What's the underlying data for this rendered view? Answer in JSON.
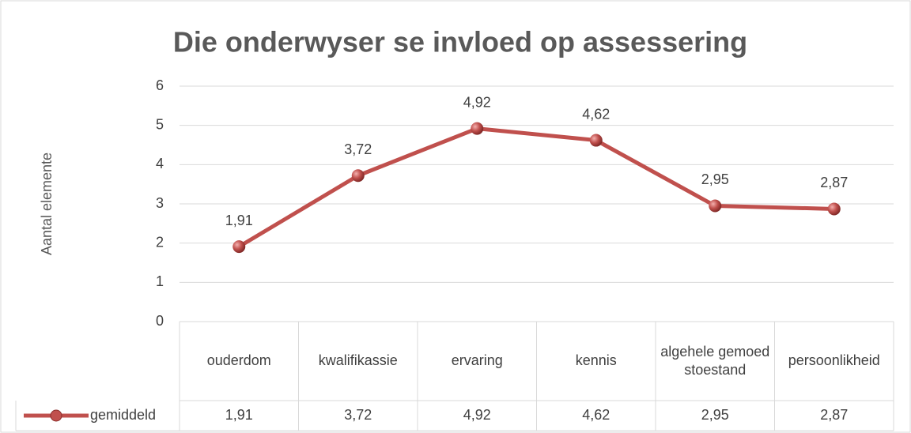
{
  "chart_data": {
    "type": "line",
    "title": "Die onderwyser se invloed op assessering",
    "y_label": "Aantal elemente",
    "categories": [
      "ouderdom",
      "kwalifikassie",
      "ervaring",
      "kennis",
      "algehele gemoedstoestand",
      "persoonlikheid"
    ],
    "series": [
      {
        "name": "gemiddeld",
        "color": "#c0504d",
        "values": [
          1.91,
          3.72,
          4.92,
          4.62,
          2.95,
          2.87
        ],
        "value_labels": [
          "1,91",
          "3,72",
          "4,92",
          "4,62",
          "2,95",
          "2,87"
        ]
      }
    ],
    "ylim": [
      0,
      6
    ],
    "yticks": [
      0,
      1,
      2,
      3,
      4,
      5,
      6
    ],
    "grid": true
  }
}
